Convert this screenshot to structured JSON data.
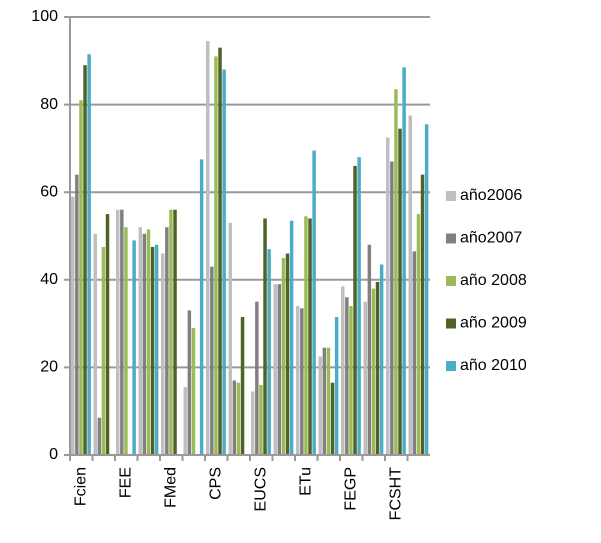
{
  "chart_data": {
    "type": "bar",
    "categories": [
      "Fcien",
      null,
      "FEE",
      null,
      "FMed",
      null,
      "CPS",
      null,
      "EUCS",
      null,
      "ETu",
      null,
      "FEGP",
      null,
      "FCSHT",
      null
    ],
    "series": [
      {
        "name": "año2006",
        "color": "#bfbfbf",
        "values": [
          59,
          50.5,
          56,
          52,
          46,
          15.5,
          94.5,
          53,
          14.5,
          39,
          34,
          22.5,
          38.5,
          35,
          72.5,
          77.5
        ]
      },
      {
        "name": "año2007",
        "color": "#808080",
        "values": [
          64,
          8.5,
          56,
          50.5,
          52,
          33,
          43,
          17,
          35,
          39,
          33.5,
          24.5,
          36,
          48,
          67,
          46.5
        ]
      },
      {
        "name": "año 2008",
        "color": "#9bbb59",
        "values": [
          81,
          47.5,
          52,
          51.5,
          56,
          29,
          91,
          16.5,
          16,
          45,
          54.5,
          24.5,
          34,
          38,
          83.5,
          55
        ]
      },
      {
        "name": "año 2009",
        "color": "#4f6228",
        "values": [
          89,
          55,
          0,
          47.5,
          56,
          0,
          93,
          31.5,
          54,
          46,
          54,
          16.5,
          66,
          39.5,
          74.5,
          64
        ]
      },
      {
        "name": "año 2010",
        "color": "#4bacc6",
        "values": [
          91.5,
          0,
          49,
          48,
          0,
          67.5,
          88,
          0,
          47,
          53.5,
          69.5,
          31.5,
          68,
          43.5,
          88.5,
          75.5
        ]
      }
    ],
    "ylim": [
      0,
      100
    ],
    "yticks": [
      0,
      20,
      40,
      60,
      80,
      100
    ],
    "grid": true,
    "legend": "right"
  }
}
